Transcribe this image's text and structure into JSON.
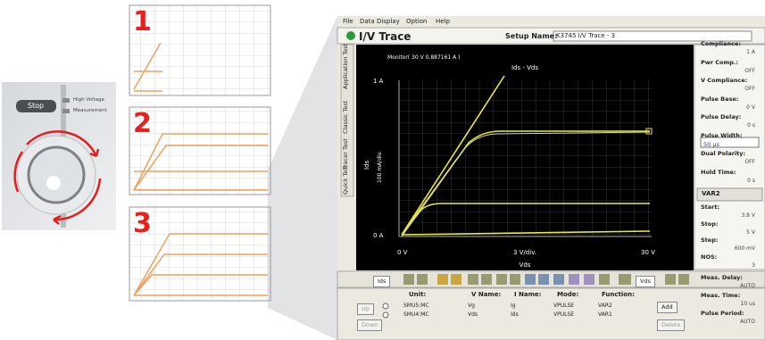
{
  "knob_panel": {
    "button": "Stop",
    "indicator_labels": [
      "High Voltage",
      "Measurement"
    ]
  },
  "steps": [
    "1",
    "2",
    "3"
  ],
  "window": {
    "menu": [
      "File",
      "Data Display",
      "Option",
      "Help"
    ],
    "title": "I/V Trace",
    "setup_name_label": "Setup Name:",
    "setup_name": "K3745 I/V Trace - 3",
    "tabs": [
      "Application Test",
      "Classic Test",
      "Tracer Test",
      "Quick Test"
    ],
    "plot": {
      "monitor": "Monitor( 30 V 0.887161 A )",
      "title": "Ids - Vds",
      "y_top": "1 A",
      "y_bottom": "0 A",
      "x_left": "0 V",
      "x_div": "3 V/div.",
      "x_right": "30 V",
      "x_name": "Vds",
      "y_name": "Ids",
      "y_div": "100 mA/div."
    },
    "settings": [
      {
        "label": "Compliance:",
        "value": "1 A"
      },
      {
        "label": "Pwr Comp.:",
        "value": "OFF"
      },
      {
        "label": "V Compliance:",
        "value": "OFF"
      },
      {
        "label": "Pulse Base:",
        "value": "0 V"
      },
      {
        "label": "Pulse Delay:",
        "value": "0 s"
      },
      {
        "label": "Pulse Width:",
        "value": "50 μs"
      },
      {
        "label": "Dual Polarity:",
        "value": "OFF"
      },
      {
        "label": "Hold Time:",
        "value": "0 s"
      }
    ],
    "var2": {
      "title": "VAR2",
      "fields": [
        {
          "label": "Start:",
          "value": "3.8 V"
        },
        {
          "label": "Stop:",
          "value": "5 V"
        },
        {
          "label": "Step:",
          "value": "600 mV"
        },
        {
          "label": "NOS:",
          "value": "3"
        }
      ]
    },
    "timing": [
      {
        "label": "Meas. Delay:",
        "value": "AUTO"
      },
      {
        "label": "Meas. Time:",
        "value": "10 us"
      },
      {
        "label": "Pulse Period:",
        "value": "AUTO"
      }
    ],
    "toolbar": {
      "y_select": "Ids",
      "x_select": "Vds"
    },
    "channels": {
      "headers": [
        "Unit:",
        "V Name:",
        "I Name:",
        "Mode:",
        "Function:"
      ],
      "rows": [
        [
          "SMU5:MC",
          "Vg",
          "Ig",
          "VPULSE",
          "VAR2"
        ],
        [
          "SMU4:MC",
          "Vds",
          "Ids",
          "VPULSE",
          "VAR1"
        ]
      ]
    },
    "buttons": {
      "up": "Up",
      "down": "Down",
      "add": "Add",
      "delete": "Delete"
    }
  }
}
